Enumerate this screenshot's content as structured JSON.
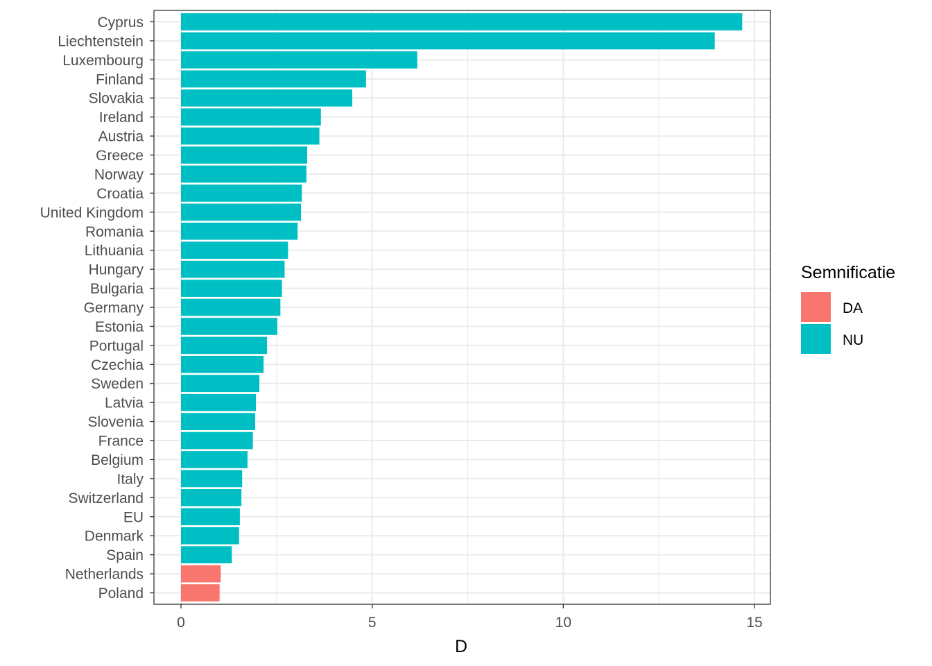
{
  "chart_data": {
    "type": "bar",
    "orientation": "horizontal",
    "xlabel": "D",
    "ylabel": "",
    "xlim": [
      0,
      15
    ],
    "x_ticks": [
      0,
      5,
      10,
      15
    ],
    "grid": true,
    "legend": {
      "title": "Semnificatie",
      "placement": "right",
      "entries": [
        {
          "label": "DA",
          "color": "#F8766D"
        },
        {
          "label": "NU",
          "color": "#00BFC4"
        }
      ]
    },
    "categories": [
      "Poland",
      "Netherlands",
      "Spain",
      "Denmark",
      "EU",
      "Switzerland",
      "Italy",
      "Belgium",
      "France",
      "Slovenia",
      "Latvia",
      "Sweden",
      "Czechia",
      "Portugal",
      "Estonia",
      "Germany",
      "Bulgaria",
      "Hungary",
      "Lithuania",
      "Romania",
      "United Kingdom",
      "Croatia",
      "Norway",
      "Greece",
      "Austria",
      "Ireland",
      "Slovakia",
      "Finland",
      "Luxembourg",
      "Liechtenstein",
      "Cyprus"
    ],
    "values": [
      1.01,
      1.04,
      1.33,
      1.52,
      1.54,
      1.58,
      1.6,
      1.74,
      1.88,
      1.94,
      1.96,
      2.05,
      2.16,
      2.25,
      2.52,
      2.6,
      2.64,
      2.71,
      2.8,
      3.05,
      3.14,
      3.16,
      3.28,
      3.3,
      3.62,
      3.66,
      4.48,
      4.84,
      6.18,
      13.96,
      14.68
    ],
    "groups": [
      "DA",
      "DA",
      "NU",
      "NU",
      "NU",
      "NU",
      "NU",
      "NU",
      "NU",
      "NU",
      "NU",
      "NU",
      "NU",
      "NU",
      "NU",
      "NU",
      "NU",
      "NU",
      "NU",
      "NU",
      "NU",
      "NU",
      "NU",
      "NU",
      "NU",
      "NU",
      "NU",
      "NU",
      "NU",
      "NU",
      "NU"
    ]
  }
}
